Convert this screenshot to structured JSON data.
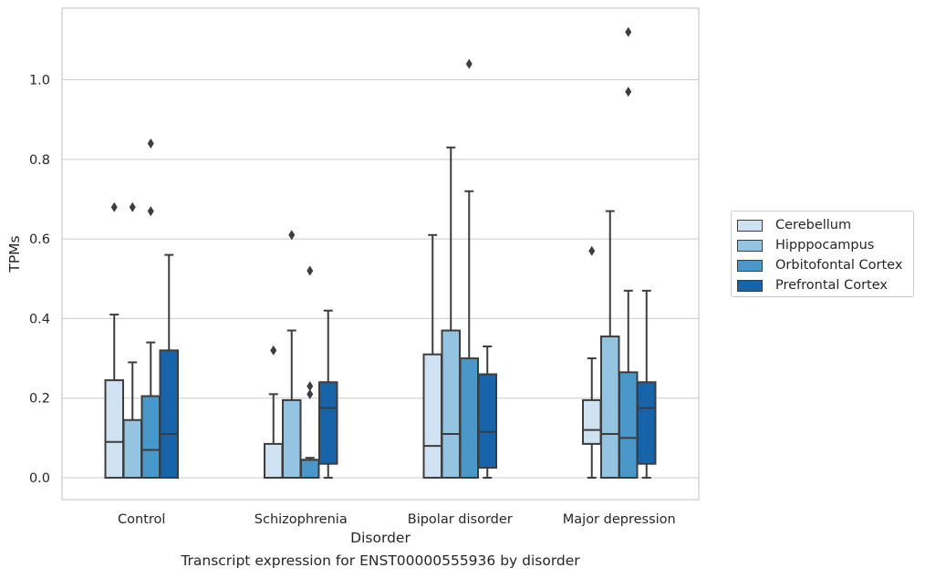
{
  "chart_data": {
    "type": "box",
    "xlabel": "Disorder",
    "ylabel": "TPMs",
    "caption": "Transcript expression for ENST00000555936 by disorder",
    "ylim": [
      -0.055,
      1.18
    ],
    "y_ticks": [
      "0.0",
      "0.2",
      "0.4",
      "0.6",
      "0.8",
      "1.0"
    ],
    "grid": "horizontal",
    "legend_position": "right",
    "categories": [
      "Control",
      "Schizophrenia",
      "Bipolar disorder",
      "Major depression"
    ],
    "series": [
      {
        "name": "Cerebellum",
        "color": "#d0e1f2",
        "boxes": [
          {
            "whisker_low": 0.0,
            "q1": 0.0,
            "median": 0.09,
            "q3": 0.245,
            "whisker_high": 0.41,
            "outliers": [
              0.68
            ]
          },
          {
            "whisker_low": 0.0,
            "q1": 0.0,
            "median": 0.0,
            "q3": 0.085,
            "whisker_high": 0.21,
            "outliers": [
              0.32
            ]
          },
          {
            "whisker_low": 0.0,
            "q1": 0.0,
            "median": 0.08,
            "q3": 0.31,
            "whisker_high": 0.61,
            "outliers": []
          },
          {
            "whisker_low": 0.0,
            "q1": 0.085,
            "median": 0.12,
            "q3": 0.195,
            "whisker_high": 0.3,
            "outliers": [
              0.57
            ]
          }
        ]
      },
      {
        "name": "Hipppocampus",
        "color": "#94c4df",
        "boxes": [
          {
            "whisker_low": 0.0,
            "q1": 0.0,
            "median": 0.0,
            "q3": 0.145,
            "whisker_high": 0.29,
            "outliers": [
              0.68
            ]
          },
          {
            "whisker_low": 0.0,
            "q1": 0.0,
            "median": 0.0,
            "q3": 0.195,
            "whisker_high": 0.37,
            "outliers": [
              0.61
            ]
          },
          {
            "whisker_low": 0.0,
            "q1": 0.0,
            "median": 0.11,
            "q3": 0.37,
            "whisker_high": 0.83,
            "outliers": []
          },
          {
            "whisker_low": 0.0,
            "q1": 0.0,
            "median": 0.11,
            "q3": 0.355,
            "whisker_high": 0.67,
            "outliers": []
          }
        ]
      },
      {
        "name": "Orbitofontal Cortex",
        "color": "#4a98c9",
        "boxes": [
          {
            "whisker_low": 0.0,
            "q1": 0.0,
            "median": 0.07,
            "q3": 0.205,
            "whisker_high": 0.34,
            "outliers": [
              0.67,
              0.84
            ]
          },
          {
            "whisker_low": 0.0,
            "q1": 0.0,
            "median": 0.045,
            "q3": 0.045,
            "whisker_high": 0.05,
            "outliers": [
              0.21,
              0.23,
              0.52
            ]
          },
          {
            "whisker_low": 0.0,
            "q1": 0.0,
            "median": 0.0,
            "q3": 0.3,
            "whisker_high": 0.72,
            "outliers": [
              1.04
            ]
          },
          {
            "whisker_low": 0.0,
            "q1": 0.0,
            "median": 0.1,
            "q3": 0.265,
            "whisker_high": 0.47,
            "outliers": [
              0.97,
              1.12
            ]
          }
        ]
      },
      {
        "name": "Prefrontal Cortex",
        "color": "#1764ab",
        "boxes": [
          {
            "whisker_low": 0.0,
            "q1": 0.0,
            "median": 0.11,
            "q3": 0.32,
            "whisker_high": 0.56,
            "outliers": []
          },
          {
            "whisker_low": 0.0,
            "q1": 0.035,
            "median": 0.175,
            "q3": 0.24,
            "whisker_high": 0.42,
            "outliers": []
          },
          {
            "whisker_low": 0.0,
            "q1": 0.025,
            "median": 0.115,
            "q3": 0.26,
            "whisker_high": 0.33,
            "outliers": []
          },
          {
            "whisker_low": 0.0,
            "q1": 0.035,
            "median": 0.175,
            "q3": 0.24,
            "whisker_high": 0.47,
            "outliers": []
          }
        ]
      }
    ]
  }
}
